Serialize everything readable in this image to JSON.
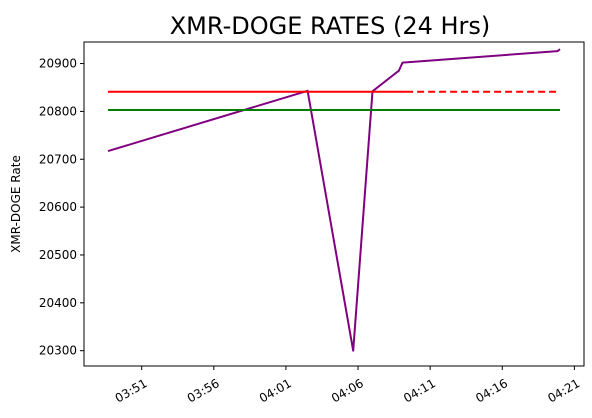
{
  "chart_data": {
    "type": "line",
    "title": "XMR-DOGE RATES (24 Hrs)",
    "xlabel": "",
    "ylabel": "XMR-DOGE Rate",
    "x_axis": "time",
    "xlim": [
      "03:47:00",
      "04:21:40"
    ],
    "ylim": [
      20268,
      20945
    ],
    "x_ticks": [
      "03:51",
      "03:56",
      "04:01",
      "04:06",
      "04:11",
      "04:16",
      "04:21"
    ],
    "y_ticks": [
      20300,
      20400,
      20500,
      20600,
      20700,
      20800,
      20900
    ],
    "grid": false,
    "series": [
      {
        "style": "solid",
        "color": "#800080",
        "x": [
          "03:48:40",
          "04:02:30",
          "04:05:40",
          "04:07:00",
          "04:08:50",
          "04:09:05",
          "04:19:50",
          "04:20:00"
        ],
        "y": [
          20717,
          20843,
          20300,
          20842,
          20885,
          20902,
          20926,
          20930
        ]
      },
      {
        "style": "solid",
        "color": "#ff0000",
        "x": [
          "03:48:40",
          "04:09:20"
        ],
        "y": [
          20841,
          20841
        ]
      },
      {
        "style": "dashed",
        "color": "#ff0000",
        "x": [
          "04:09:20",
          "04:20:00"
        ],
        "y": [
          20841,
          20841
        ]
      },
      {
        "style": "solid",
        "color": "#008000",
        "x": [
          "03:48:40",
          "04:20:00"
        ],
        "y": [
          20803,
          20803
        ]
      }
    ]
  }
}
